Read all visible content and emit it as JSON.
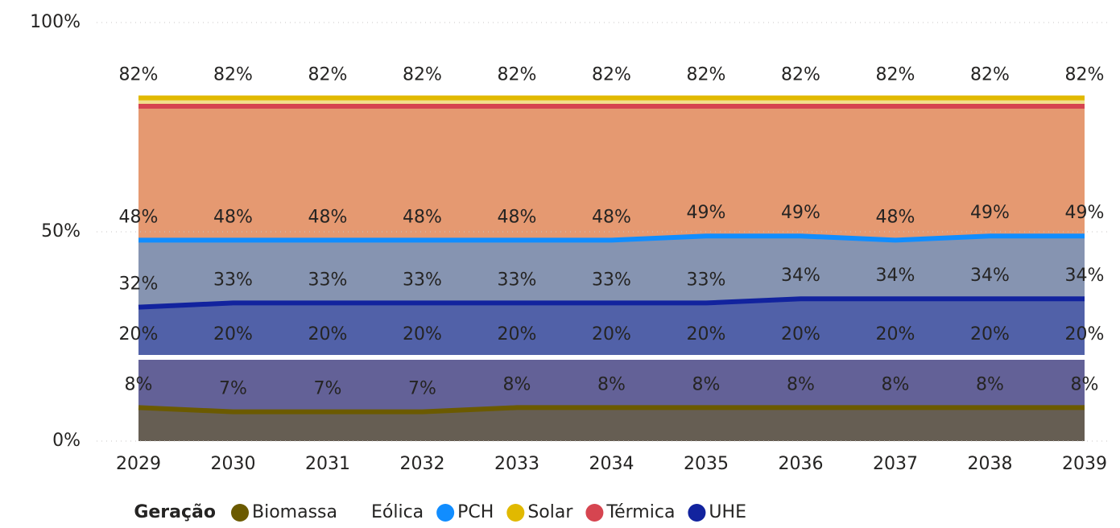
{
  "chart_data": {
    "type": "line",
    "categories": [
      "2029",
      "2030",
      "2031",
      "2032",
      "2033",
      "2034",
      "2035",
      "2036",
      "2037",
      "2038",
      "2039"
    ],
    "ylim": [
      0,
      100
    ],
    "yticks": [
      {
        "value": 0,
        "label": "0%"
      },
      {
        "value": 50,
        "label": "50%"
      },
      {
        "value": 100,
        "label": "100%"
      }
    ],
    "grid": true,
    "legend_title": "Geração",
    "legend": "bottom",
    "series": [
      {
        "name": "Biomassa",
        "color": "#6b5a00",
        "values": [
          8,
          7,
          7,
          7,
          8,
          8,
          8,
          8,
          8,
          8,
          8
        ],
        "value_labels": [
          "8%",
          "7%",
          "7%",
          "7%",
          "8%",
          "8%",
          "8%",
          "8%",
          "8%",
          "8%",
          "8%"
        ]
      },
      {
        "name": "Eólica",
        "color": "#ffffff",
        "values": [
          20,
          20,
          20,
          20,
          20,
          20,
          20,
          20,
          20,
          20,
          20
        ],
        "value_labels": [
          "20%",
          "20%",
          "20%",
          "20%",
          "20%",
          "20%",
          "20%",
          "20%",
          "20%",
          "20%",
          "20%"
        ]
      },
      {
        "name": "PCH",
        "color": "#118dff",
        "values": [
          48,
          48,
          48,
          48,
          48,
          48,
          49,
          49,
          48,
          49,
          49
        ],
        "value_labels": [
          "48%",
          "48%",
          "48%",
          "48%",
          "48%",
          "48%",
          "49%",
          "49%",
          "48%",
          "49%",
          "49%"
        ]
      },
      {
        "name": "Solar",
        "color": "#e1b900",
        "values": [
          82,
          82,
          82,
          82,
          82,
          82,
          82,
          82,
          82,
          82,
          82
        ],
        "value_labels": [
          "82%",
          "82%",
          "82%",
          "82%",
          "82%",
          "82%",
          "82%",
          "82%",
          "82%",
          "82%",
          "82%"
        ]
      },
      {
        "name": "Térmica",
        "color": "#d64550",
        "values": [
          80,
          80,
          80,
          80,
          80,
          80,
          80,
          80,
          80,
          80,
          80
        ]
      },
      {
        "name": "UHE",
        "color": "#12239e",
        "values": [
          32,
          33,
          33,
          33,
          33,
          33,
          33,
          34,
          34,
          34,
          34
        ],
        "value_labels": [
          "32%",
          "33%",
          "33%",
          "33%",
          "33%",
          "33%",
          "33%",
          "34%",
          "34%",
          "34%",
          "34%"
        ]
      }
    ]
  }
}
